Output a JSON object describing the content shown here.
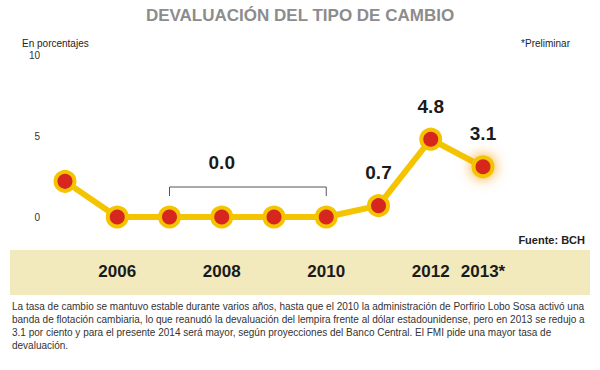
{
  "chart_data": {
    "type": "line",
    "title": "DEVALUACIÓN DEL TIPO DE CAMBIO",
    "y_label": "En porcentajes",
    "note": "*Preliminar",
    "source": "Fuente: BCH",
    "caption": "La tasa de cambio se mantuvo estable durante varios años, hasta que el 2010 la administración de Porfirio Lobo Sosa activó una banda de flotación cambiaria, lo que reanudó la devaluación del lempira frente al dólar estadounidense, pero en 2013 se redujo a 3.1 por ciento y para el presente 2014 será mayor, según proyecciones del Banco Central. El FMI pide una mayor tasa de devaluación.",
    "categories": [
      null,
      "2006",
      null,
      "2008",
      null,
      "2010",
      null,
      "2012",
      "2013*"
    ],
    "values": [
      2.2,
      0,
      0,
      0,
      0,
      0,
      0.7,
      4.8,
      3.1
    ],
    "value_labels": [
      null,
      null,
      null,
      "0.0",
      null,
      null,
      "0.7",
      "4.8",
      "3.1"
    ],
    "data_labels": true,
    "color": "#f5c400",
    "marker": "circle",
    "ylim": [
      0,
      10
    ],
    "yticks": [
      0,
      5,
      10
    ],
    "grid": false
  }
}
